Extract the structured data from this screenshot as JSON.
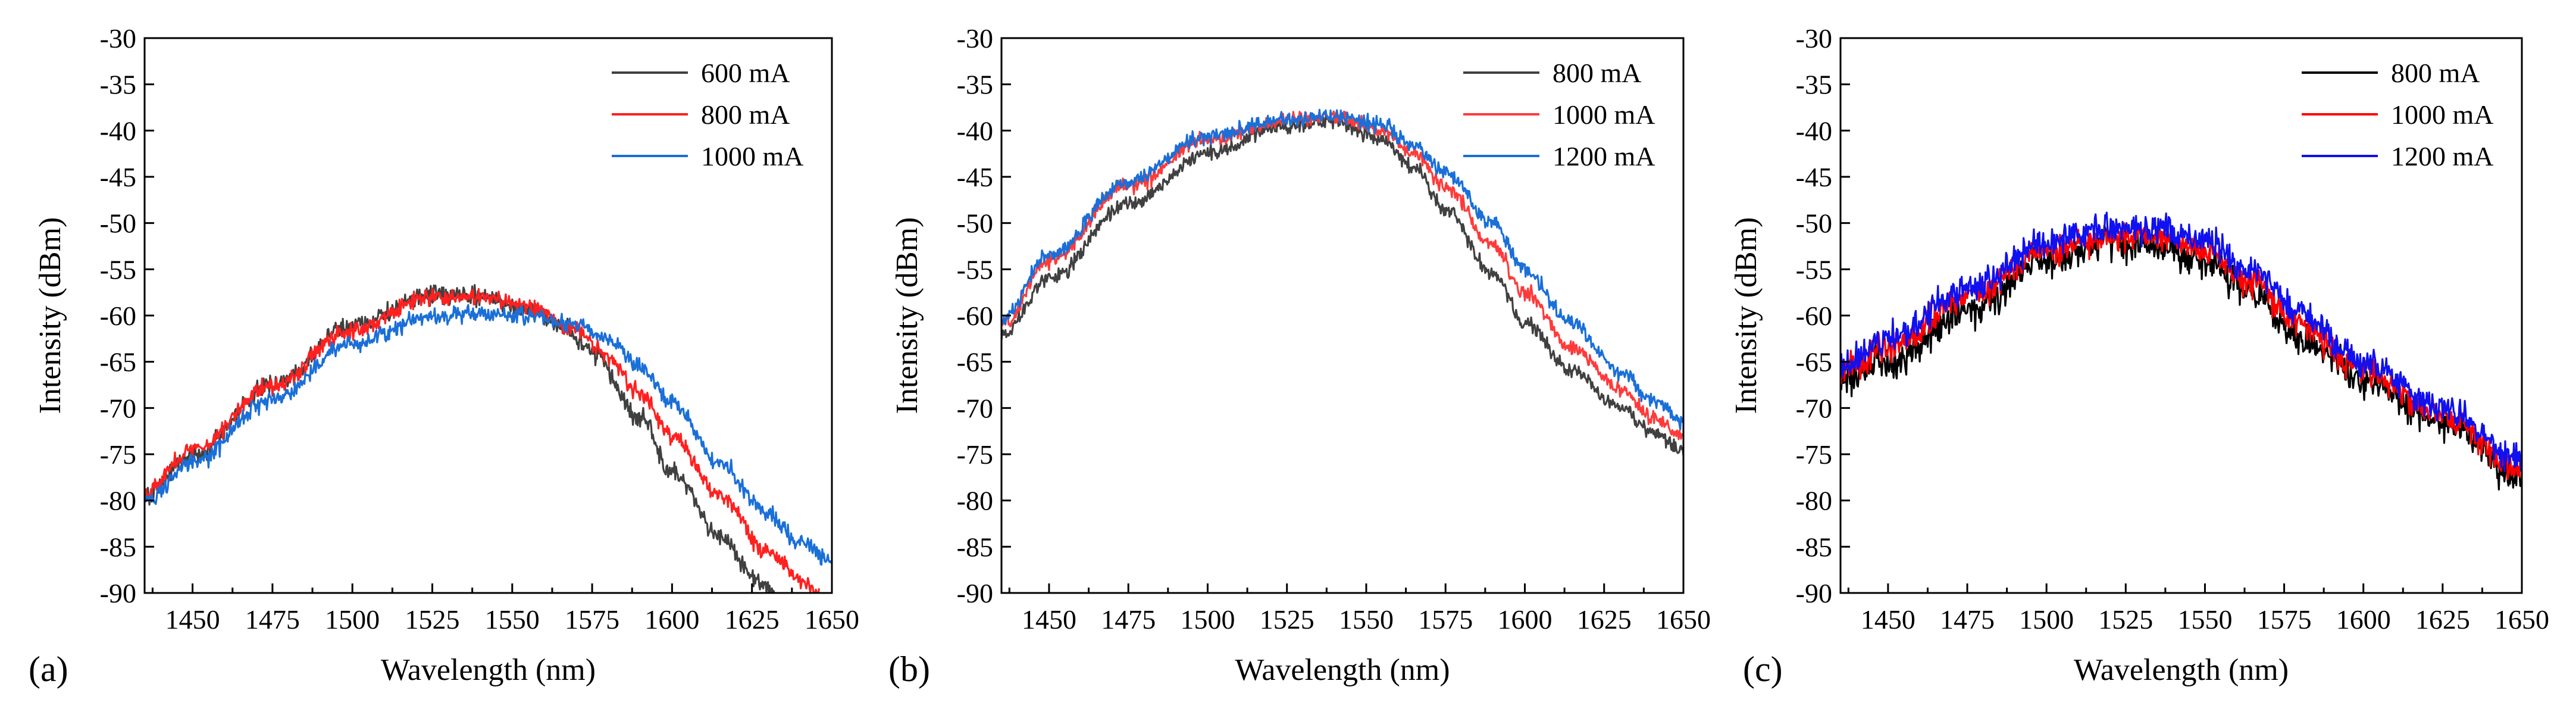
{
  "chart_data": [
    {
      "type": "line",
      "panel_label": "(a)",
      "xlabel": "Wavelength (nm)",
      "ylabel": "Intensity (dBm)",
      "xlim": [
        1435,
        1650
      ],
      "ylim": [
        -90,
        -30
      ],
      "xticks": [
        "1450",
        "1475",
        "1500",
        "1525",
        "1550",
        "1575",
        "1600",
        "1625",
        "1650"
      ],
      "yticks": [
        "-30",
        "-35",
        "-40",
        "-45",
        "-50",
        "-55",
        "-60",
        "-65",
        "-70",
        "-75",
        "-80",
        "-85",
        "-90"
      ],
      "grid": false,
      "legend_position": "top-right",
      "series": [
        {
          "name": "600 mA",
          "color": "#404040",
          "noise": 0.5,
          "x": [
            1435,
            1450,
            1475,
            1500,
            1525,
            1540,
            1555,
            1565,
            1575,
            1590,
            1600,
            1615,
            1628,
            1632
          ],
          "y": [
            -79.5,
            -75,
            -67.5,
            -61,
            -57.8,
            -58,
            -59.2,
            -61,
            -64,
            -71,
            -77,
            -84,
            -89,
            -90
          ]
        },
        {
          "name": "800 mA",
          "color": "#ff2020",
          "noise": 0.45,
          "x": [
            1435,
            1450,
            1475,
            1500,
            1525,
            1540,
            1555,
            1570,
            1580,
            1590,
            1600,
            1615,
            1630,
            1640,
            1646
          ],
          "y": [
            -79,
            -74.5,
            -67.5,
            -61.5,
            -58,
            -58,
            -59,
            -61.5,
            -64.5,
            -68.5,
            -73,
            -79.5,
            -85.5,
            -88.5,
            -90
          ]
        },
        {
          "name": "1000 mA",
          "color": "#1a6fd8",
          "noise": 0.45,
          "x": [
            1435,
            1450,
            1475,
            1500,
            1525,
            1540,
            1555,
            1570,
            1580,
            1590,
            1600,
            1615,
            1630,
            1640,
            1650
          ],
          "y": [
            -80,
            -76,
            -69,
            -63,
            -60,
            -59.8,
            -60,
            -61,
            -62.5,
            -65.5,
            -69.5,
            -76,
            -81.5,
            -84.5,
            -86.5
          ]
        }
      ]
    },
    {
      "type": "line",
      "panel_label": "(b)",
      "xlabel": "Wavelength (nm)",
      "ylabel": "Intensity (dBm)",
      "xlim": [
        1435,
        1650
      ],
      "ylim": [
        -90,
        -30
      ],
      "xticks": [
        "1450",
        "1475",
        "1500",
        "1525",
        "1550",
        "1575",
        "1600",
        "1625",
        "1650"
      ],
      "yticks": [
        "-30",
        "-35",
        "-40",
        "-45",
        "-50",
        "-55",
        "-60",
        "-65",
        "-70",
        "-75",
        "-80",
        "-85",
        "-90"
      ],
      "grid": false,
      "legend_position": "top-right",
      "series": [
        {
          "name": "800 mA",
          "color": "#404040",
          "noise": 0.4,
          "x": [
            1435,
            1450,
            1475,
            1500,
            1525,
            1540,
            1555,
            1565,
            1575,
            1590,
            1600,
            1615,
            1630,
            1640,
            1650
          ],
          "y": [
            -62,
            -56,
            -48,
            -42.5,
            -39.5,
            -39,
            -41,
            -44,
            -48.5,
            -55.5,
            -61,
            -66,
            -70,
            -72.5,
            -74.5
          ]
        },
        {
          "name": "1000 mA",
          "color": "#ff3a3a",
          "noise": 0.4,
          "x": [
            1435,
            1450,
            1475,
            1500,
            1525,
            1540,
            1555,
            1565,
            1575,
            1590,
            1600,
            1615,
            1630,
            1640,
            1650
          ],
          "y": [
            -61,
            -54,
            -46,
            -41,
            -38.8,
            -38.5,
            -40,
            -42.5,
            -46,
            -52.5,
            -57.5,
            -63.5,
            -68,
            -71,
            -73
          ]
        },
        {
          "name": "1200 mA",
          "color": "#1a6fd8",
          "noise": 0.4,
          "x": [
            1435,
            1450,
            1475,
            1500,
            1525,
            1540,
            1555,
            1565,
            1575,
            1590,
            1600,
            1615,
            1630,
            1640,
            1650
          ],
          "y": [
            -60.5,
            -53.5,
            -45.5,
            -40.5,
            -38.8,
            -38.5,
            -39.5,
            -41.5,
            -44.5,
            -50,
            -55,
            -61,
            -66,
            -69,
            -71.5
          ]
        }
      ]
    },
    {
      "type": "line",
      "panel_label": "(c)",
      "xlabel": "Wavelength (nm)",
      "ylabel": "Intensity (dBm)",
      "xlim": [
        1435,
        1650
      ],
      "ylim": [
        -90,
        -30
      ],
      "xticks": [
        "1450",
        "1475",
        "1500",
        "1525",
        "1550",
        "1575",
        "1600",
        "1625",
        "1650"
      ],
      "yticks": [
        "-30",
        "-35",
        "-40",
        "-45",
        "-50",
        "-55",
        "-60",
        "-65",
        "-70",
        "-75",
        "-80",
        "-85",
        "-90"
      ],
      "grid": false,
      "legend_position": "top-right",
      "series": [
        {
          "name": "800 mA",
          "color": "#000000",
          "noise": 0.9,
          "x": [
            1435,
            1450,
            1475,
            1500,
            1520,
            1535,
            1550,
            1565,
            1580,
            1600,
            1625,
            1650
          ],
          "y": [
            -67,
            -65,
            -59.5,
            -54,
            -52,
            -52.5,
            -54,
            -58,
            -62.5,
            -67,
            -71.5,
            -77.5
          ]
        },
        {
          "name": "1000 mA",
          "color": "#ff0000",
          "noise": 0.8,
          "x": [
            1435,
            1450,
            1475,
            1500,
            1520,
            1535,
            1550,
            1565,
            1580,
            1600,
            1625,
            1650
          ],
          "y": [
            -66,
            -63.5,
            -58,
            -53,
            -51.5,
            -51.5,
            -53,
            -56.5,
            -61,
            -66,
            -71,
            -76.5
          ]
        },
        {
          "name": "1200 mA",
          "color": "#1010f0",
          "noise": 0.8,
          "x": [
            1435,
            1450,
            1475,
            1500,
            1520,
            1535,
            1550,
            1565,
            1580,
            1600,
            1625,
            1650
          ],
          "y": [
            -65.5,
            -62.5,
            -57,
            -52,
            -50.5,
            -50.5,
            -52,
            -55,
            -60,
            -65,
            -70,
            -75.5
          ]
        }
      ]
    }
  ]
}
